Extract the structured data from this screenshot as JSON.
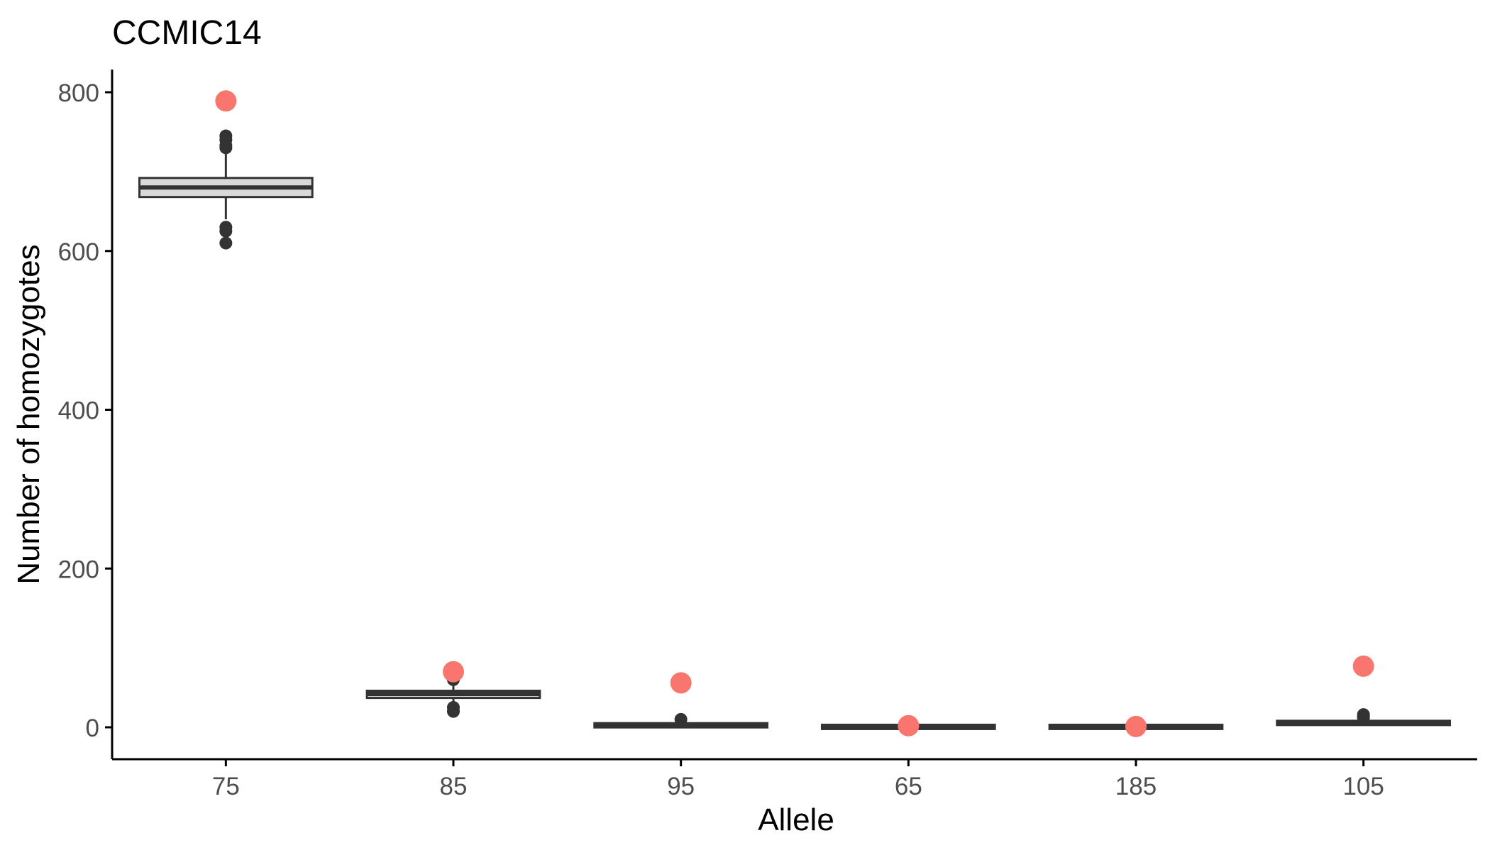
{
  "chart_data": {
    "type": "box",
    "title": "CCMIC14",
    "xlabel": "Allele",
    "ylabel": "Number of homozygotes",
    "categories": [
      "75",
      "85",
      "95",
      "65",
      "185",
      "105"
    ],
    "ylim": [
      -40,
      825
    ],
    "yticks": [
      0,
      200,
      400,
      600,
      800
    ],
    "grid": false,
    "legend": "none",
    "boxes": [
      {
        "category": "75",
        "q1": 668,
        "median": 680,
        "q3": 692,
        "whisker_low": 640,
        "whisker_high": 723,
        "outliers": [
          745,
          740,
          733,
          730,
          630,
          625,
          610
        ]
      },
      {
        "category": "85",
        "q1": 37,
        "median": 42,
        "q3": 46,
        "whisker_low": 30,
        "whisker_high": 55,
        "outliers": [
          60,
          25,
          20
        ]
      },
      {
        "category": "95",
        "q1": 1,
        "median": 3,
        "q3": 4,
        "whisker_low": 0,
        "whisker_high": 7,
        "outliers": [
          10
        ]
      },
      {
        "category": "65",
        "q1": 0,
        "median": 0,
        "q3": 1,
        "whisker_low": 0,
        "whisker_high": 2,
        "outliers": []
      },
      {
        "category": "185",
        "q1": 0,
        "median": 0,
        "q3": 1,
        "whisker_low": 0,
        "whisker_high": 2,
        "outliers": []
      },
      {
        "category": "105",
        "q1": 4,
        "median": 5,
        "q3": 7,
        "whisker_low": 2,
        "whisker_high": 10,
        "outliers": [
          16,
          14,
          12
        ]
      }
    ],
    "observed": [
      {
        "category": "75",
        "value": 789
      },
      {
        "category": "85",
        "value": 70
      },
      {
        "category": "95",
        "value": 56
      },
      {
        "category": "65",
        "value": 2
      },
      {
        "category": "185",
        "value": 1
      },
      {
        "category": "105",
        "value": 77
      }
    ],
    "colors": {
      "box_fill": "#d9d9d9",
      "box_stroke": "#333333",
      "outlier": "#333333",
      "observed": "#f8766d",
      "axis": "#000000",
      "tick_label": "#4d4d4d"
    }
  }
}
